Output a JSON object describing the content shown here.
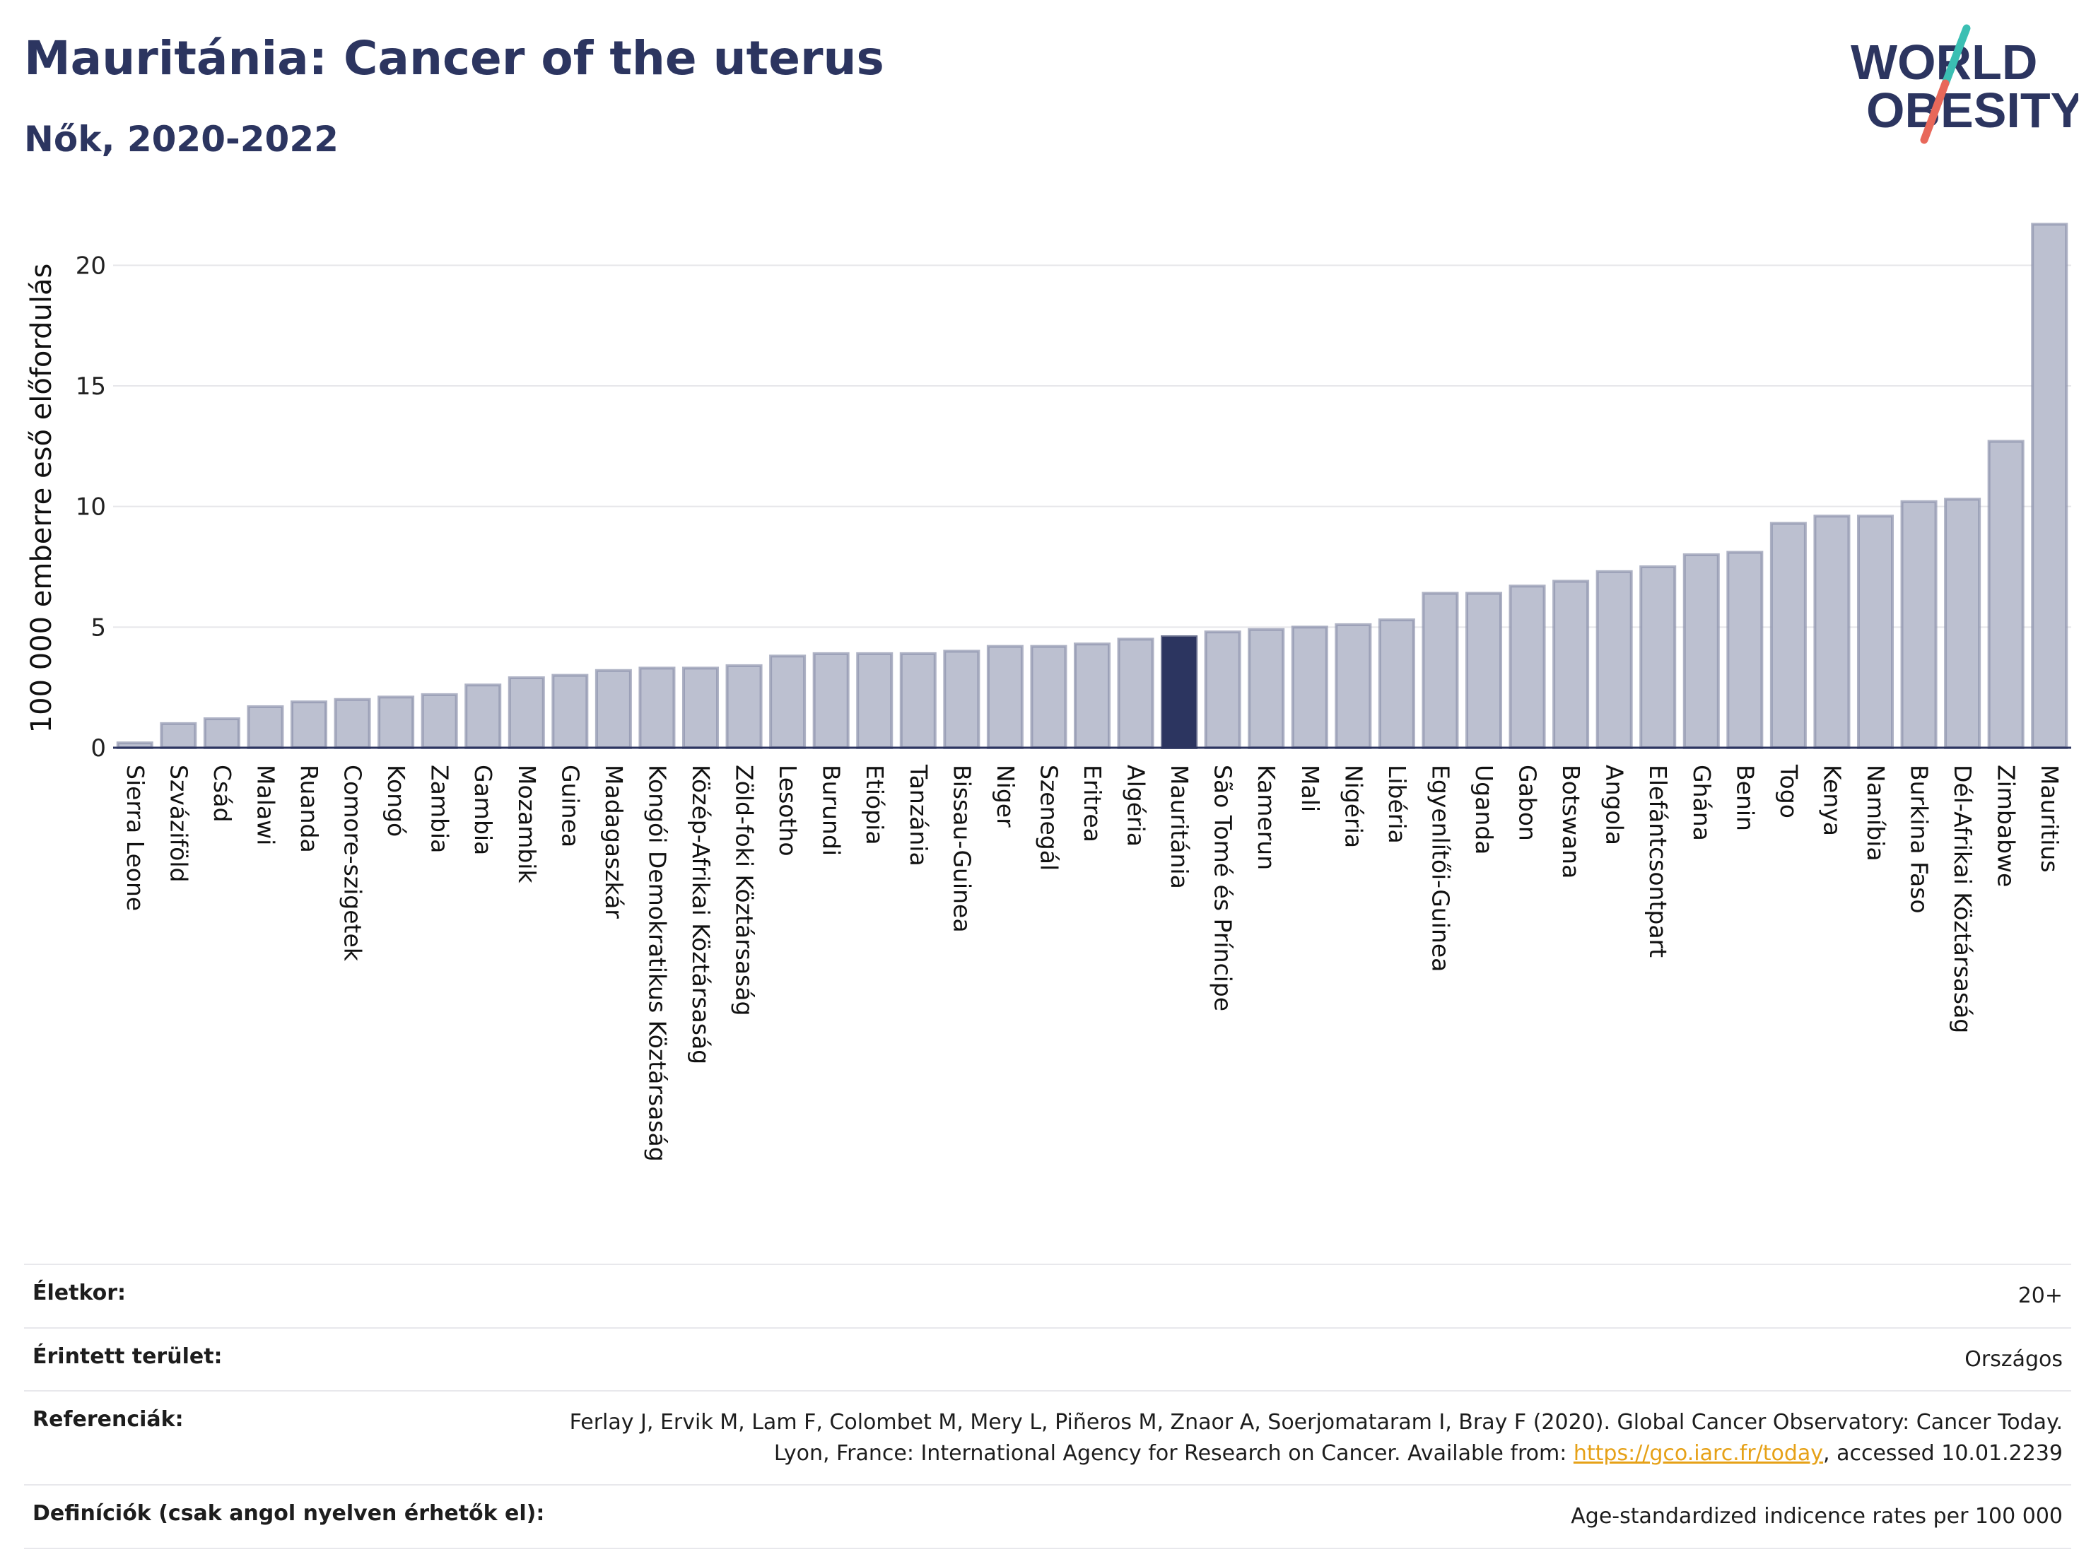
{
  "header": {
    "title": "Mauritánia: Cancer of the uterus",
    "subtitle": "Nők, 2020-2022"
  },
  "logo": {
    "line1": "WORLD",
    "line2": "OBESITY",
    "colors": {
      "text": "#2c3560",
      "slash_top": "#3bbfb3",
      "slash_bottom": "#e8685a"
    }
  },
  "chart_data": {
    "type": "bar",
    "ylabel": "100 000 emberre eső előfordulás",
    "ylim": [
      0,
      22.5
    ],
    "yticks": [
      0,
      5,
      10,
      15,
      20
    ],
    "grid": true,
    "highlight": "Mauritánia",
    "colors": {
      "bar": "#bcc0d0",
      "bar_edge": "#8d93ad",
      "highlight": "#2c3560",
      "axis": "#2c3560",
      "grid": "#e6e6ea"
    },
    "categories": [
      "Sierra Leone",
      "Szváziföld",
      "Csád",
      "Malawi",
      "Ruanda",
      "Comore-szigetek",
      "Kongó",
      "Zambia",
      "Gambia",
      "Mozambik",
      "Guinea",
      "Madagaszkár",
      "Kongói Demokratikus Köztársaság",
      "Közép-Afrikai Köztársaság",
      "Zöld-foki Köztársaság",
      "Lesotho",
      "Burundi",
      "Etiópia",
      "Tanzánia",
      "Bissau-Guinea",
      "Niger",
      "Szenegál",
      "Eritrea",
      "Algéria",
      "Mauritánia",
      "São Tomé és Príncipe",
      "Kamerun",
      "Mali",
      "Nigéria",
      "Libéria",
      "Egyenlítői-Guinea",
      "Uganda",
      "Gabon",
      "Botswana",
      "Angola",
      "Elefántcsontpart",
      "Ghána",
      "Benin",
      "Togo",
      "Kenya",
      "Namíbia",
      "Burkina Faso",
      "Dél-Afrikai Köztársaság",
      "Zimbabwe",
      "Mauritius"
    ],
    "values": [
      0.2,
      1.0,
      1.2,
      1.7,
      1.9,
      2.0,
      2.1,
      2.2,
      2.6,
      2.9,
      3.0,
      3.2,
      3.3,
      3.3,
      3.4,
      3.8,
      3.9,
      3.9,
      3.9,
      4.0,
      4.2,
      4.2,
      4.3,
      4.5,
      4.6,
      4.8,
      4.9,
      5.0,
      5.1,
      5.3,
      6.4,
      6.4,
      6.7,
      6.9,
      7.3,
      7.5,
      8.0,
      8.1,
      9.3,
      9.6,
      9.6,
      10.2,
      10.3,
      12.7,
      21.7
    ]
  },
  "info": {
    "rows": [
      {
        "label": "Életkor:",
        "value": "20+"
      },
      {
        "label": "Érintett terület:",
        "value": "Országos"
      },
      {
        "label": "Referenciák:",
        "value_before": "Ferlay J, Ervik M, Lam F, Colombet M, Mery L, Piñeros M, Znaor A, Soerjomataram I, Bray F (2020). Global Cancer Observatory: Cancer Today. Lyon, France: International Agency for Research on Cancer. Available from: ",
        "link": "https://gco.iarc.fr/today",
        "value_after": ", accessed 10.01.2239"
      },
      {
        "label": "Definíciók (csak angol nyelven érhetők el):",
        "value": "Age-standardized indicence rates per 100 000"
      }
    ]
  }
}
